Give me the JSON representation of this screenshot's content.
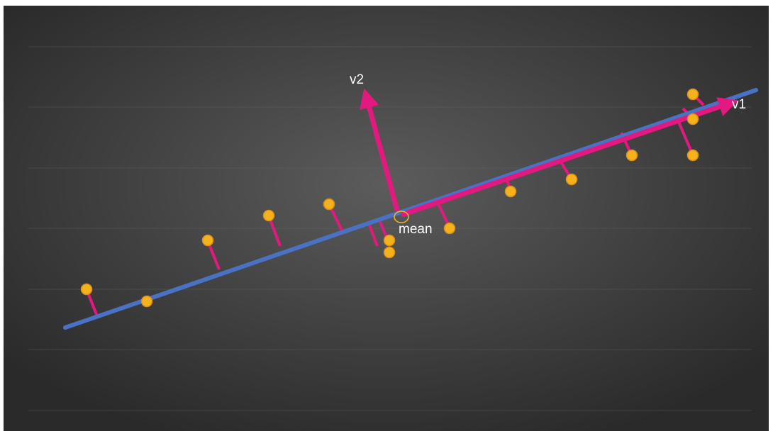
{
  "labels": {
    "axis_v1": "v1",
    "axis_v2": "v2",
    "mean": "mean"
  },
  "colors": {
    "principal_line": "#4a72c4",
    "projection": "#e4197f",
    "vector": "#e4197f",
    "point_fill": "#f5b21a",
    "point_stroke": "#d8901a",
    "mean_marker": "#f5b21a",
    "text": "#ffffff"
  }
}
